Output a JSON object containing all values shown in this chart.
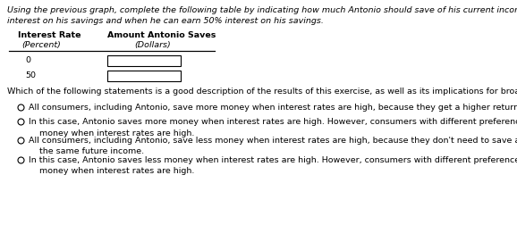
{
  "intro_line1": "Using the previous graph, complete the following table by indicating how much Antonio should save of his current income when he cannot earn any",
  "intro_line2": "interest on his savings and when he can earn 50% interest on his savings.",
  "col1_header1": "Interest Rate",
  "col1_header2": "(Percent)",
  "col2_header1": "Amount Antonio Saves",
  "col2_header2": "(Dollars)",
  "row_values": [
    "0",
    "50"
  ],
  "question_text": "Which of the following statements is a good description of the results of this exercise, as well as its implications for broader consumer behavior?",
  "options": [
    "All consumers, including Antonio, save more money when interest rates are high, because they get a higher return on that investment.",
    "In this case, Antonio saves more money when interest rates are high. However, consumers with different preferences might save less\n    money when interest rates are high.",
    "All consumers, including Antonio, save less money when interest rates are high, because they don't need to save as much money to have\n    the same future income.",
    "In this case, Antonio saves less money when interest rates are high. However, consumers with different preferences might save more\n    money when interest rates are high."
  ],
  "bg_color": "#ffffff",
  "text_color": "#000000",
  "font_size": 6.8
}
